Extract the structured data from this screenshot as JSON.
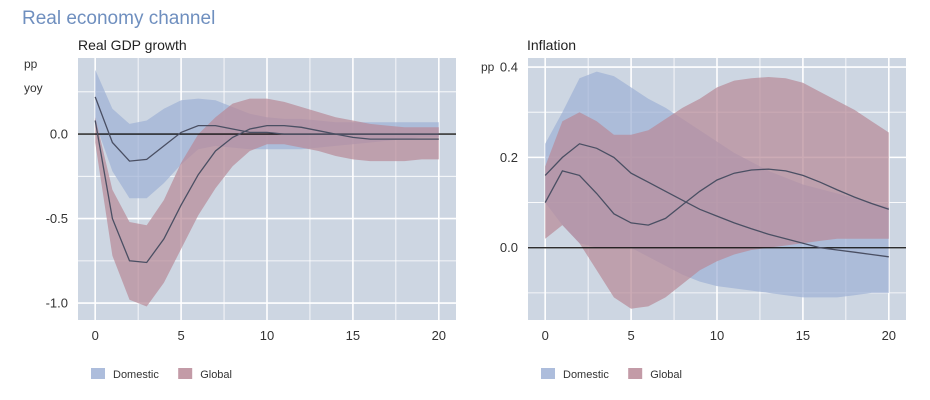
{
  "header": {
    "title": "Real economy channel"
  },
  "colors": {
    "domestic": "#9fb2d6",
    "global": "#b88a98",
    "plot_bg": "#cdd6e2",
    "grid": "#ffffff",
    "line": "#4a4f63",
    "text": "#333333",
    "title": "#6f8fbf"
  },
  "legend": [
    {
      "label": "Domestic",
      "color": "#9fb2d6"
    },
    {
      "label": "Global",
      "color": "#b88a98"
    }
  ],
  "chart_data": [
    {
      "type": "area",
      "title": "Real GDP growth",
      "ylabel_lines": [
        "pp",
        "yoy"
      ],
      "xlim": [
        -1,
        21
      ],
      "ylim": [
        -1.1,
        0.45
      ],
      "xticks": [
        0,
        5,
        10,
        15,
        20
      ],
      "yticks": [
        -1.0,
        -0.5,
        0.0
      ],
      "ytick_labels": [
        "-1.0",
        "-0.5",
        "0.0"
      ],
      "grid": true,
      "legend_position": "bottom-left",
      "x": [
        0,
        1,
        2,
        3,
        4,
        5,
        6,
        7,
        8,
        9,
        10,
        11,
        12,
        13,
        14,
        15,
        16,
        17,
        18,
        19,
        20
      ],
      "series": [
        {
          "name": "Domestic",
          "median": [
            0.22,
            -0.05,
            -0.16,
            -0.15,
            -0.07,
            0.01,
            0.05,
            0.05,
            0.03,
            0.01,
            0.01,
            0.0,
            0.0,
            0.0,
            0.0,
            0.0,
            0.0,
            0.0,
            0.0,
            0.0,
            0.0
          ],
          "lower": [
            0.07,
            -0.22,
            -0.38,
            -0.38,
            -0.29,
            -0.18,
            -0.09,
            -0.07,
            -0.08,
            -0.09,
            -0.09,
            -0.09,
            -0.09,
            -0.08,
            -0.07,
            -0.06,
            -0.05,
            -0.04,
            -0.03,
            -0.02,
            -0.02
          ],
          "upper": [
            0.38,
            0.15,
            0.06,
            0.08,
            0.15,
            0.2,
            0.21,
            0.2,
            0.16,
            0.12,
            0.1,
            0.09,
            0.09,
            0.08,
            0.07,
            0.07,
            0.07,
            0.07,
            0.07,
            0.07,
            0.07
          ]
        },
        {
          "name": "Global",
          "median": [
            0.08,
            -0.5,
            -0.75,
            -0.76,
            -0.62,
            -0.42,
            -0.24,
            -0.1,
            -0.02,
            0.03,
            0.05,
            0.05,
            0.04,
            0.02,
            0.0,
            -0.02,
            -0.03,
            -0.03,
            -0.03,
            -0.03,
            -0.03
          ],
          "lower": [
            -0.05,
            -0.72,
            -0.98,
            -1.02,
            -0.88,
            -0.68,
            -0.48,
            -0.32,
            -0.19,
            -0.1,
            -0.06,
            -0.06,
            -0.08,
            -0.1,
            -0.13,
            -0.15,
            -0.16,
            -0.16,
            -0.16,
            -0.15,
            -0.15
          ],
          "upper": [
            0.1,
            -0.33,
            -0.52,
            -0.54,
            -0.39,
            -0.17,
            0.0,
            0.1,
            0.18,
            0.21,
            0.21,
            0.19,
            0.16,
            0.13,
            0.1,
            0.08,
            0.06,
            0.05,
            0.04,
            0.04,
            0.04
          ]
        }
      ]
    },
    {
      "type": "area",
      "title": "Inflation",
      "ylabel_lines": [
        "pp"
      ],
      "xlim": [
        -1,
        21
      ],
      "ylim": [
        -0.16,
        0.42
      ],
      "xticks": [
        0,
        5,
        10,
        15,
        20
      ],
      "yticks": [
        0.0,
        0.2,
        0.4
      ],
      "ytick_labels": [
        "0.0",
        "0.2",
        "0.4"
      ],
      "grid": true,
      "legend_position": "bottom-left",
      "x": [
        0,
        1,
        2,
        3,
        4,
        5,
        6,
        7,
        8,
        9,
        10,
        11,
        12,
        13,
        14,
        15,
        16,
        17,
        18,
        19,
        20
      ],
      "series": [
        {
          "name": "Domestic",
          "median": [
            0.16,
            0.2,
            0.23,
            0.22,
            0.2,
            0.165,
            0.145,
            0.125,
            0.105,
            0.085,
            0.07,
            0.055,
            0.042,
            0.03,
            0.02,
            0.01,
            0.0,
            -0.005,
            -0.01,
            -0.015,
            -0.02
          ],
          "lower": [
            0.1,
            0.05,
            0.01,
            0.0,
            0.0,
            0.0,
            -0.02,
            -0.04,
            -0.06,
            -0.075,
            -0.085,
            -0.09,
            -0.095,
            -0.1,
            -0.105,
            -0.11,
            -0.11,
            -0.11,
            -0.105,
            -0.1,
            -0.1
          ],
          "upper": [
            0.23,
            0.3,
            0.375,
            0.39,
            0.38,
            0.355,
            0.33,
            0.31,
            0.285,
            0.26,
            0.235,
            0.21,
            0.19,
            0.17,
            0.155,
            0.14,
            0.13,
            0.12,
            0.11,
            0.1,
            0.09
          ]
        },
        {
          "name": "Global",
          "median": [
            0.1,
            0.17,
            0.16,
            0.12,
            0.075,
            0.055,
            0.05,
            0.065,
            0.095,
            0.125,
            0.15,
            0.165,
            0.172,
            0.174,
            0.17,
            0.16,
            0.145,
            0.128,
            0.112,
            0.098,
            0.085
          ],
          "lower": [
            0.02,
            0.05,
            0.01,
            -0.05,
            -0.11,
            -0.135,
            -0.13,
            -0.11,
            -0.08,
            -0.05,
            -0.03,
            -0.015,
            -0.005,
            0.0,
            0.005,
            0.01,
            0.015,
            0.02,
            0.02,
            0.02,
            0.02
          ],
          "upper": [
            0.18,
            0.28,
            0.3,
            0.28,
            0.25,
            0.25,
            0.26,
            0.285,
            0.31,
            0.33,
            0.355,
            0.37,
            0.375,
            0.378,
            0.375,
            0.365,
            0.345,
            0.325,
            0.305,
            0.28,
            0.255
          ]
        }
      ]
    }
  ]
}
